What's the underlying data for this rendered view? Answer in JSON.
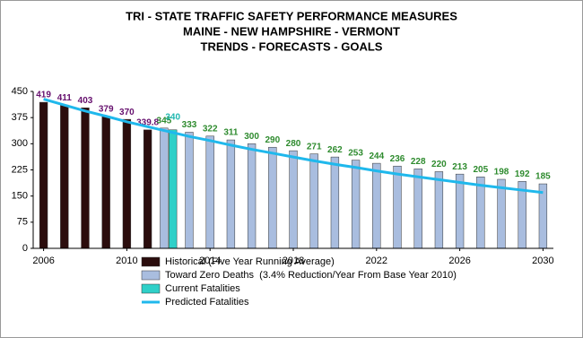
{
  "chart_data": {
    "type": "bar",
    "title": [
      "TRI - STATE TRAFFIC SAFETY PERFORMANCE MEASURES",
      "MAINE - NEW HAMPSHIRE - VERMONT",
      "TRENDS - FORECASTS - GOALS"
    ],
    "x": [
      2006,
      2007,
      2008,
      2009,
      2010,
      2011,
      2012,
      2013,
      2014,
      2015,
      2016,
      2017,
      2018,
      2019,
      2020,
      2021,
      2022,
      2023,
      2024,
      2025,
      2026,
      2027,
      2028,
      2029,
      2030
    ],
    "xlim": [
      2005.5,
      2030.5
    ],
    "xticks": [
      2006,
      2010,
      2014,
      2018,
      2022,
      2026,
      2030
    ],
    "ylim": [
      0,
      450
    ],
    "yticks": [
      0,
      75,
      150,
      225,
      300,
      375,
      450
    ],
    "legend": "bottom",
    "series": [
      {
        "name": "Historical (Five Year Running Average)",
        "type": "bar",
        "color": "#2b0d0d",
        "label_color": "#66106e",
        "values": [
          419,
          411,
          403,
          379,
          370,
          339.8,
          null,
          null,
          null,
          null,
          null,
          null,
          null,
          null,
          null,
          null,
          null,
          null,
          null,
          null,
          null,
          null,
          null,
          null,
          null
        ]
      },
      {
        "name": "Toward Zero Deaths  (3.4% Reduction/Year From Base Year 2010)",
        "type": "bar",
        "color": "#a9bddf",
        "label_color": "#2e8b2e",
        "values": [
          null,
          null,
          null,
          null,
          null,
          null,
          345,
          333,
          322,
          311,
          300,
          290,
          280,
          271,
          262,
          253,
          244,
          236,
          228,
          220,
          213,
          205,
          198,
          192,
          185
        ]
      },
      {
        "name": "Current Fatalities",
        "type": "bar",
        "color": "#2fd0c8",
        "label_color": "#20b8b0",
        "values": [
          null,
          null,
          null,
          null,
          null,
          null,
          340,
          null,
          null,
          null,
          null,
          null,
          null,
          null,
          null,
          null,
          null,
          null,
          null,
          null,
          null,
          null,
          null,
          null,
          null
        ]
      },
      {
        "name": "Predicted Fatalities",
        "type": "line",
        "color": "#1fb8ec",
        "values": [
          428,
          411,
          394,
          379,
          363,
          349,
          335,
          321,
          309,
          296,
          284,
          273,
          262,
          251,
          241,
          232,
          222,
          213,
          205,
          197,
          189,
          181,
          174,
          167,
          160
        ]
      }
    ]
  }
}
